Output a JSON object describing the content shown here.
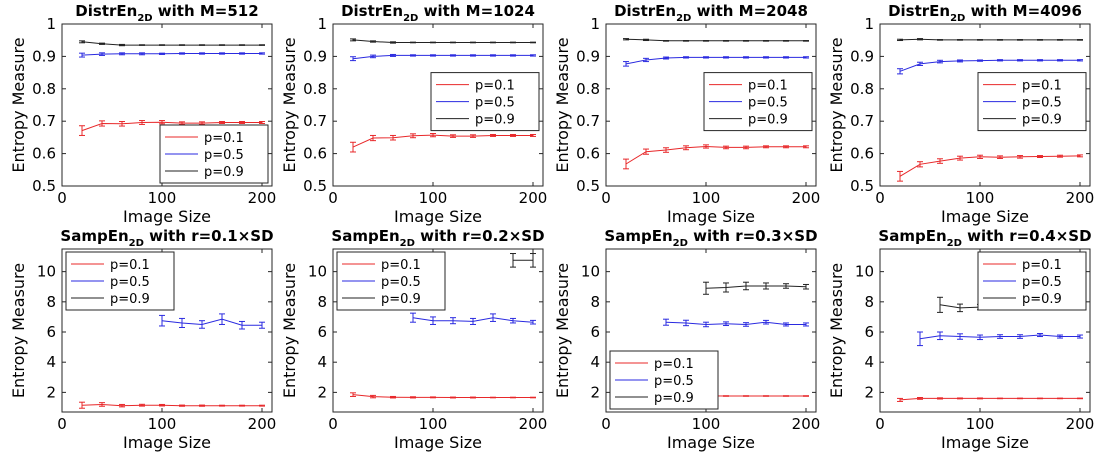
{
  "chart_data": [
    {
      "type": "line",
      "title": {
        "pre": "DistrEn",
        "sub": "2D",
        "post": " with M=512"
      },
      "xlabel": "Image Size",
      "ylabel": "Entropy Measure",
      "xlim": [
        0,
        210
      ],
      "ylim": [
        0.5,
        1.0
      ],
      "xticks": [
        "0",
        "100",
        "200"
      ],
      "yticks": [
        "0.5",
        "0.6",
        "0.7",
        "0.8",
        "0.9",
        "1"
      ],
      "legend_position": "bottom-right",
      "series": [
        {
          "name": "p=0.1",
          "color": "#e8282a",
          "x": [
            20,
            40,
            60,
            80,
            100,
            120,
            140,
            160,
            180,
            200
          ],
          "y": [
            0.671,
            0.693,
            0.692,
            0.696,
            0.697,
            0.694,
            0.694,
            0.696,
            0.696,
            0.696
          ],
          "err": [
            0.015,
            0.008,
            0.007,
            0.006,
            0.005,
            0.004,
            0.004,
            0.003,
            0.003,
            0.003
          ]
        },
        {
          "name": "p=0.5",
          "color": "#2a2ae0",
          "x": [
            20,
            40,
            60,
            80,
            100,
            120,
            140,
            160,
            180,
            200
          ],
          "y": [
            0.904,
            0.907,
            0.908,
            0.908,
            0.908,
            0.909,
            0.909,
            0.909,
            0.909,
            0.909
          ],
          "err": [
            0.006,
            0.004,
            0.003,
            0.003,
            0.002,
            0.002,
            0.002,
            0.002,
            0.002,
            0.002
          ]
        },
        {
          "name": "p=0.9",
          "color": "#222222",
          "x": [
            20,
            40,
            60,
            80,
            100,
            120,
            140,
            160,
            180,
            200
          ],
          "y": [
            0.945,
            0.939,
            0.935,
            0.935,
            0.935,
            0.935,
            0.935,
            0.935,
            0.935,
            0.935
          ],
          "err": [
            0.003,
            0.002,
            0.002,
            0.001,
            0.001,
            0.001,
            0.001,
            0.001,
            0.001,
            0.001
          ]
        }
      ]
    },
    {
      "type": "line",
      "title": {
        "pre": "DistrEn",
        "sub": "2D",
        "post": " with M=1024"
      },
      "xlabel": "Image Size",
      "ylabel": "Entropy Measure",
      "xlim": [
        0,
        210
      ],
      "ylim": [
        0.5,
        1.0
      ],
      "xticks": [
        "0",
        "100",
        "200"
      ],
      "yticks": [
        "0.5",
        "0.6",
        "0.7",
        "0.8",
        "0.9",
        "1"
      ],
      "legend_position": "middle-right",
      "series": [
        {
          "name": "p=0.1",
          "color": "#e8282a",
          "x": [
            20,
            40,
            60,
            80,
            100,
            120,
            140,
            160,
            180,
            200
          ],
          "y": [
            0.62,
            0.648,
            0.649,
            0.655,
            0.657,
            0.654,
            0.654,
            0.656,
            0.656,
            0.656
          ],
          "err": [
            0.015,
            0.008,
            0.007,
            0.006,
            0.005,
            0.004,
            0.004,
            0.003,
            0.003,
            0.003
          ]
        },
        {
          "name": "p=0.5",
          "color": "#2a2ae0",
          "x": [
            20,
            40,
            60,
            80,
            100,
            120,
            140,
            160,
            180,
            200
          ],
          "y": [
            0.893,
            0.9,
            0.903,
            0.903,
            0.903,
            0.903,
            0.903,
            0.903,
            0.903,
            0.903
          ],
          "err": [
            0.006,
            0.004,
            0.003,
            0.002,
            0.002,
            0.002,
            0.002,
            0.002,
            0.002,
            0.002
          ]
        },
        {
          "name": "p=0.9",
          "color": "#222222",
          "x": [
            20,
            40,
            60,
            80,
            100,
            120,
            140,
            160,
            180,
            200
          ],
          "y": [
            0.951,
            0.946,
            0.943,
            0.943,
            0.943,
            0.943,
            0.943,
            0.943,
            0.943,
            0.943
          ],
          "err": [
            0.003,
            0.002,
            0.002,
            0.001,
            0.001,
            0.001,
            0.001,
            0.001,
            0.001,
            0.001
          ]
        }
      ]
    },
    {
      "type": "line",
      "title": {
        "pre": "DistrEn",
        "sub": "2D",
        "post": " with M=2048"
      },
      "xlabel": "Image Size",
      "ylabel": "Entropy Measure",
      "xlim": [
        0,
        210
      ],
      "ylim": [
        0.5,
        1.0
      ],
      "xticks": [
        "0",
        "100",
        "200"
      ],
      "yticks": [
        "0.5",
        "0.6",
        "0.7",
        "0.8",
        "0.9",
        "1"
      ],
      "legend_position": "middle-right",
      "series": [
        {
          "name": "p=0.1",
          "color": "#e8282a",
          "x": [
            20,
            40,
            60,
            80,
            100,
            120,
            140,
            160,
            180,
            200
          ],
          "y": [
            0.568,
            0.606,
            0.611,
            0.618,
            0.622,
            0.619,
            0.619,
            0.621,
            0.621,
            0.621
          ],
          "err": [
            0.015,
            0.008,
            0.007,
            0.006,
            0.005,
            0.004,
            0.004,
            0.003,
            0.003,
            0.003
          ]
        },
        {
          "name": "p=0.5",
          "color": "#2a2ae0",
          "x": [
            20,
            40,
            60,
            80,
            100,
            120,
            140,
            160,
            180,
            200
          ],
          "y": [
            0.877,
            0.889,
            0.895,
            0.897,
            0.897,
            0.897,
            0.897,
            0.897,
            0.897,
            0.897
          ],
          "err": [
            0.007,
            0.005,
            0.003,
            0.002,
            0.002,
            0.002,
            0.002,
            0.002,
            0.002,
            0.002
          ]
        },
        {
          "name": "p=0.9",
          "color": "#222222",
          "x": [
            20,
            40,
            60,
            80,
            100,
            120,
            140,
            160,
            180,
            200
          ],
          "y": [
            0.953,
            0.951,
            0.948,
            0.948,
            0.948,
            0.948,
            0.948,
            0.948,
            0.948,
            0.948
          ],
          "err": [
            0.002,
            0.002,
            0.001,
            0.001,
            0.001,
            0.001,
            0.001,
            0.001,
            0.001,
            0.001
          ]
        }
      ]
    },
    {
      "type": "line",
      "title": {
        "pre": "DistrEn",
        "sub": "2D",
        "post": " with M=4096"
      },
      "xlabel": "Image Size",
      "ylabel": "Entropy Measure",
      "xlim": [
        0,
        210
      ],
      "ylim": [
        0.5,
        1.0
      ],
      "xticks": [
        "0",
        "100",
        "200"
      ],
      "yticks": [
        "0.5",
        "0.6",
        "0.7",
        "0.8",
        "0.9",
        "1"
      ],
      "legend_position": "middle-right",
      "series": [
        {
          "name": "p=0.1",
          "color": "#e8282a",
          "x": [
            20,
            40,
            60,
            80,
            100,
            120,
            140,
            160,
            180,
            200
          ],
          "y": [
            0.53,
            0.567,
            0.577,
            0.586,
            0.59,
            0.589,
            0.59,
            0.591,
            0.592,
            0.593
          ],
          "err": [
            0.015,
            0.008,
            0.007,
            0.006,
            0.005,
            0.004,
            0.004,
            0.003,
            0.003,
            0.003
          ]
        },
        {
          "name": "p=0.5",
          "color": "#2a2ae0",
          "x": [
            20,
            40,
            60,
            80,
            100,
            120,
            140,
            160,
            180,
            200
          ],
          "y": [
            0.854,
            0.877,
            0.884,
            0.886,
            0.887,
            0.888,
            0.888,
            0.888,
            0.888,
            0.888
          ],
          "err": [
            0.008,
            0.005,
            0.004,
            0.003,
            0.002,
            0.002,
            0.002,
            0.002,
            0.002,
            0.002
          ]
        },
        {
          "name": "p=0.9",
          "color": "#222222",
          "x": [
            20,
            40,
            60,
            80,
            100,
            120,
            140,
            160,
            180,
            200
          ],
          "y": [
            0.951,
            0.953,
            0.951,
            0.951,
            0.951,
            0.951,
            0.951,
            0.951,
            0.951,
            0.951
          ],
          "err": [
            0.002,
            0.002,
            0.001,
            0.001,
            0.001,
            0.001,
            0.001,
            0.001,
            0.001,
            0.001
          ]
        }
      ]
    },
    {
      "type": "line",
      "title": {
        "pre": "SampEn",
        "sub": "2D",
        "post": " with r=0.1×SD"
      },
      "xlabel": "Image Size",
      "ylabel": "Entropy Measure",
      "xlim": [
        0,
        210
      ],
      "ylim": [
        0.7,
        11.5
      ],
      "xticks": [
        "0",
        "100",
        "200"
      ],
      "yticks": [
        "2",
        "4",
        "6",
        "8",
        "10"
      ],
      "legend_position": "top-left",
      "series": [
        {
          "name": "p=0.1",
          "color": "#e8282a",
          "x": [
            20,
            40,
            60,
            80,
            100,
            120,
            140,
            160,
            180,
            200
          ],
          "y": [
            1.15,
            1.2,
            1.12,
            1.15,
            1.15,
            1.12,
            1.12,
            1.12,
            1.12,
            1.12
          ],
          "err": [
            0.2,
            0.12,
            0.08,
            0.06,
            0.05,
            0.04,
            0.04,
            0.03,
            0.03,
            0.03
          ]
        },
        {
          "name": "p=0.5",
          "color": "#2a2ae0",
          "x": [
            100,
            120,
            140,
            160,
            180,
            200
          ],
          "y": [
            6.75,
            6.6,
            6.5,
            6.85,
            6.45,
            6.45
          ],
          "err": [
            0.35,
            0.3,
            0.25,
            0.35,
            0.25,
            0.2
          ]
        },
        {
          "name": "p=0.9",
          "color": "#222222",
          "x": [],
          "y": [],
          "err": []
        }
      ]
    },
    {
      "type": "line",
      "title": {
        "pre": "SampEn",
        "sub": "2D",
        "post": " with r=0.2×SD"
      },
      "xlabel": "Image Size",
      "ylabel": "Entropy Measure",
      "xlim": [
        0,
        210
      ],
      "ylim": [
        0.7,
        11.5
      ],
      "xticks": [
        "0",
        "100",
        "200"
      ],
      "yticks": [
        "2",
        "4",
        "6",
        "8",
        "10"
      ],
      "legend_position": "top-left",
      "series": [
        {
          "name": "p=0.1",
          "color": "#e8282a",
          "x": [
            20,
            40,
            60,
            80,
            100,
            120,
            140,
            160,
            180,
            200
          ],
          "y": [
            1.85,
            1.72,
            1.68,
            1.67,
            1.67,
            1.66,
            1.66,
            1.66,
            1.66,
            1.66
          ],
          "err": [
            0.12,
            0.08,
            0.05,
            0.04,
            0.03,
            0.03,
            0.03,
            0.02,
            0.02,
            0.02
          ]
        },
        {
          "name": "p=0.5",
          "color": "#2a2ae0",
          "x": [
            80,
            100,
            120,
            140,
            160,
            180,
            200
          ],
          "y": [
            6.95,
            6.75,
            6.75,
            6.7,
            6.95,
            6.75,
            6.65
          ],
          "err": [
            0.3,
            0.25,
            0.2,
            0.2,
            0.25,
            0.15,
            0.12
          ]
        },
        {
          "name": "p=0.9",
          "color": "#222222",
          "x": [
            180,
            200
          ],
          "y": [
            10.75,
            10.75
          ],
          "err": [
            0.45,
            0.45
          ]
        }
      ]
    },
    {
      "type": "line",
      "title": {
        "pre": "SampEn",
        "sub": "2D",
        "post": " with r=0.3×SD"
      },
      "xlabel": "Image Size",
      "ylabel": "Entropy Measure",
      "xlim": [
        0,
        210
      ],
      "ylim": [
        0.7,
        11.5
      ],
      "xticks": [
        "0",
        "100",
        "200"
      ],
      "yticks": [
        "2",
        "4",
        "6",
        "8",
        "10"
      ],
      "legend_position": "bottom-left",
      "series": [
        {
          "name": "p=0.1",
          "color": "#e8282a",
          "x": [
            20,
            40,
            60,
            80,
            100,
            120,
            140,
            160,
            180,
            200
          ],
          "y": [
            1.95,
            1.85,
            1.8,
            1.78,
            1.77,
            1.76,
            1.76,
            1.76,
            1.76,
            1.76
          ],
          "err": [
            0.08,
            0.05,
            0.04,
            0.03,
            0.03,
            0.02,
            0.02,
            0.02,
            0.02,
            0.02
          ]
        },
        {
          "name": "p=0.5",
          "color": "#2a2ae0",
          "x": [
            60,
            80,
            100,
            120,
            140,
            160,
            180,
            200
          ],
          "y": [
            6.65,
            6.6,
            6.5,
            6.55,
            6.5,
            6.65,
            6.5,
            6.5
          ],
          "err": [
            0.2,
            0.18,
            0.15,
            0.12,
            0.12,
            0.12,
            0.1,
            0.1
          ]
        },
        {
          "name": "p=0.9",
          "color": "#222222",
          "x": [
            100,
            120,
            140,
            160,
            180,
            200
          ],
          "y": [
            8.9,
            8.95,
            9.05,
            9.05,
            9.05,
            9.0
          ],
          "err": [
            0.4,
            0.3,
            0.25,
            0.2,
            0.15,
            0.15
          ]
        }
      ]
    },
    {
      "type": "line",
      "title": {
        "pre": "SampEn",
        "sub": "2D",
        "post": " with r=0.4×SD"
      },
      "xlabel": "Image Size",
      "ylabel": "Entropy Measure",
      "xlim": [
        0,
        210
      ],
      "ylim": [
        0.7,
        11.5
      ],
      "xticks": [
        "0",
        "100",
        "200"
      ],
      "yticks": [
        "2",
        "4",
        "6",
        "8",
        "10"
      ],
      "legend_position": "top-right",
      "series": [
        {
          "name": "p=0.1",
          "color": "#e8282a",
          "x": [
            20,
            40,
            60,
            80,
            100,
            120,
            140,
            160,
            180,
            200
          ],
          "y": [
            1.5,
            1.6,
            1.6,
            1.6,
            1.6,
            1.6,
            1.6,
            1.6,
            1.6,
            1.6
          ],
          "err": [
            0.1,
            0.06,
            0.04,
            0.03,
            0.03,
            0.02,
            0.02,
            0.02,
            0.02,
            0.02
          ]
        },
        {
          "name": "p=0.5",
          "color": "#2a2ae0",
          "x": [
            40,
            60,
            80,
            100,
            120,
            140,
            160,
            180,
            200
          ],
          "y": [
            5.55,
            5.75,
            5.7,
            5.65,
            5.7,
            5.7,
            5.8,
            5.7,
            5.7
          ],
          "err": [
            0.45,
            0.25,
            0.18,
            0.15,
            0.12,
            0.12,
            0.1,
            0.1,
            0.1
          ]
        },
        {
          "name": "p=0.9",
          "color": "#222222",
          "x": [
            60,
            80,
            100,
            120,
            140,
            160,
            180,
            200
          ],
          "y": [
            7.8,
            7.6,
            7.65,
            7.65,
            7.65,
            7.65,
            7.65,
            7.65
          ],
          "err": [
            0.5,
            0.25,
            0.18,
            0.12,
            0.1,
            0.1,
            0.08,
            0.08
          ]
        }
      ]
    }
  ]
}
